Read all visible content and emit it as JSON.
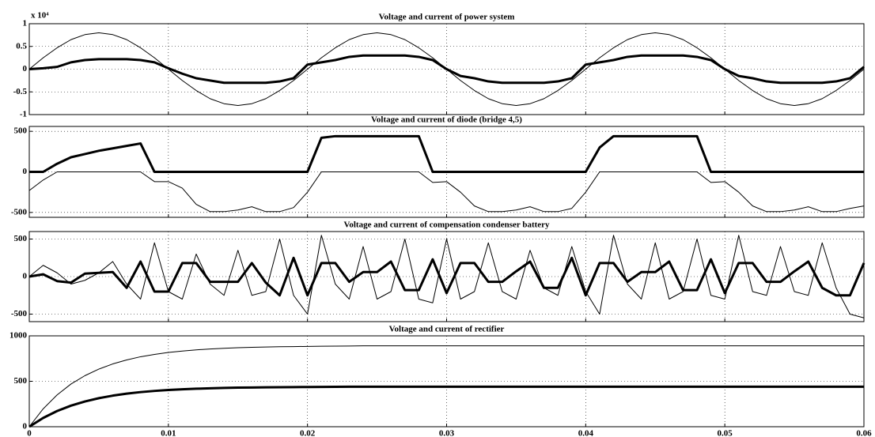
{
  "chart_data": [
    {
      "type": "line",
      "title": "Voltage and current of power system",
      "axis_scale_label": "x 10⁴",
      "x": [
        0,
        0.001,
        0.002,
        0.003,
        0.004,
        0.005,
        0.006,
        0.007,
        0.008,
        0.009,
        0.01,
        0.011,
        0.012,
        0.013,
        0.014,
        0.015,
        0.016,
        0.017,
        0.018,
        0.019,
        0.02,
        0.021,
        0.022,
        0.023,
        0.024,
        0.025,
        0.026,
        0.027,
        0.028,
        0.029,
        0.03,
        0.031,
        0.032,
        0.033,
        0.034,
        0.035,
        0.036,
        0.037,
        0.038,
        0.039,
        0.04,
        0.041,
        0.042,
        0.043,
        0.044,
        0.045,
        0.046,
        0.047,
        0.048,
        0.049,
        0.05,
        0.051,
        0.052,
        0.053,
        0.054,
        0.055,
        0.056,
        0.057,
        0.058,
        0.059,
        0.06
      ],
      "xlim": [
        0,
        0.06
      ],
      "xticks": [
        0,
        0.01,
        0.02,
        0.03,
        0.04,
        0.05,
        0.06
      ],
      "ylim": [
        -1,
        1
      ],
      "yticks": [
        -1,
        -0.5,
        0,
        0.5,
        1
      ],
      "grid": true,
      "series": [
        {
          "color": "#000000",
          "line_width": 1,
          "values": [
            0,
            0.25,
            0.47,
            0.65,
            0.76,
            0.8,
            0.76,
            0.65,
            0.47,
            0.25,
            0,
            -0.25,
            -0.47,
            -0.65,
            -0.76,
            -0.8,
            -0.76,
            -0.65,
            -0.47,
            -0.25,
            0,
            0.25,
            0.47,
            0.65,
            0.76,
            0.8,
            0.76,
            0.65,
            0.47,
            0.25,
            0,
            -0.25,
            -0.47,
            -0.65,
            -0.76,
            -0.8,
            -0.76,
            -0.65,
            -0.47,
            -0.25,
            0,
            0.25,
            0.47,
            0.65,
            0.76,
            0.8,
            0.76,
            0.65,
            0.47,
            0.25,
            0,
            -0.25,
            -0.47,
            -0.65,
            -0.76,
            -0.8,
            -0.76,
            -0.65,
            -0.47,
            -0.25,
            0
          ]
        },
        {
          "color": "#000000",
          "line_width": 3,
          "values": [
            0,
            0.02,
            0.05,
            0.15,
            0.2,
            0.22,
            0.22,
            0.22,
            0.2,
            0.15,
            0.02,
            -0.1,
            -0.2,
            -0.25,
            -0.3,
            -0.3,
            -0.3,
            -0.3,
            -0.27,
            -0.2,
            0.1,
            0.15,
            0.2,
            0.27,
            0.3,
            0.3,
            0.3,
            0.3,
            0.27,
            0.2,
            0,
            -0.15,
            -0.2,
            -0.27,
            -0.3,
            -0.3,
            -0.3,
            -0.3,
            -0.27,
            -0.2,
            0.1,
            0.15,
            0.2,
            0.27,
            0.3,
            0.3,
            0.3,
            0.3,
            0.27,
            0.2,
            0,
            -0.15,
            -0.2,
            -0.27,
            -0.3,
            -0.3,
            -0.3,
            -0.3,
            -0.27,
            -0.2,
            0.05
          ]
        }
      ]
    },
    {
      "type": "line",
      "title": "Voltage and current of diode (bridge 4,5)",
      "x": [
        0,
        0.001,
        0.002,
        0.003,
        0.004,
        0.005,
        0.006,
        0.007,
        0.008,
        0.009,
        0.01,
        0.011,
        0.012,
        0.013,
        0.014,
        0.015,
        0.016,
        0.017,
        0.018,
        0.019,
        0.02,
        0.021,
        0.022,
        0.023,
        0.024,
        0.025,
        0.026,
        0.027,
        0.028,
        0.029,
        0.03,
        0.031,
        0.032,
        0.033,
        0.034,
        0.035,
        0.036,
        0.037,
        0.038,
        0.039,
        0.04,
        0.041,
        0.042,
        0.043,
        0.044,
        0.045,
        0.046,
        0.047,
        0.048,
        0.049,
        0.05,
        0.051,
        0.052,
        0.053,
        0.054,
        0.055,
        0.056,
        0.057,
        0.058,
        0.059,
        0.06
      ],
      "xlim": [
        0,
        0.06
      ],
      "xticks": [
        0,
        0.01,
        0.02,
        0.03,
        0.04,
        0.05,
        0.06
      ],
      "ylim": [
        -560,
        560
      ],
      "yticks": [
        -500,
        0,
        500
      ],
      "grid": true,
      "series": [
        {
          "color": "#000000",
          "line_width": 1,
          "values": [
            -230,
            -100,
            0,
            0,
            0,
            0,
            0,
            0,
            0,
            -120,
            -120,
            -200,
            -400,
            -490,
            -490,
            -470,
            -430,
            -490,
            -490,
            -440,
            -250,
            0,
            0,
            0,
            0,
            0,
            0,
            0,
            0,
            -130,
            -120,
            -250,
            -420,
            -490,
            -490,
            -470,
            -430,
            -490,
            -490,
            -450,
            -250,
            0,
            0,
            0,
            0,
            0,
            0,
            0,
            0,
            -130,
            -120,
            -250,
            -420,
            -490,
            -490,
            -470,
            -430,
            -490,
            -490,
            -450,
            -420
          ]
        },
        {
          "color": "#000000",
          "line_width": 3,
          "values": [
            0,
            0,
            100,
            180,
            220,
            260,
            290,
            320,
            350,
            0,
            0,
            0,
            0,
            0,
            0,
            0,
            0,
            0,
            0,
            0,
            0,
            420,
            440,
            440,
            440,
            440,
            440,
            440,
            440,
            0,
            0,
            0,
            0,
            0,
            0,
            0,
            0,
            0,
            0,
            0,
            0,
            300,
            440,
            440,
            440,
            440,
            440,
            440,
            440,
            0,
            0,
            0,
            0,
            0,
            0,
            0,
            0,
            0,
            0,
            0,
            0
          ]
        }
      ]
    },
    {
      "type": "line",
      "title": "Voltage and current of compensation condenser battery",
      "x": [
        0,
        0.001,
        0.002,
        0.003,
        0.004,
        0.005,
        0.006,
        0.007,
        0.008,
        0.009,
        0.01,
        0.011,
        0.012,
        0.013,
        0.014,
        0.015,
        0.016,
        0.017,
        0.018,
        0.019,
        0.02,
        0.021,
        0.022,
        0.023,
        0.024,
        0.025,
        0.026,
        0.027,
        0.028,
        0.029,
        0.03,
        0.031,
        0.032,
        0.033,
        0.034,
        0.035,
        0.036,
        0.037,
        0.038,
        0.039,
        0.04,
        0.041,
        0.042,
        0.043,
        0.044,
        0.045,
        0.046,
        0.047,
        0.048,
        0.049,
        0.05,
        0.051,
        0.052,
        0.053,
        0.054,
        0.055,
        0.056,
        0.057,
        0.058,
        0.059,
        0.06
      ],
      "xlim": [
        0,
        0.06
      ],
      "xticks": [
        0,
        0.01,
        0.02,
        0.03,
        0.04,
        0.05,
        0.06
      ],
      "ylim": [
        -600,
        600
      ],
      "yticks": [
        -500,
        0,
        500
      ],
      "grid": true,
      "series": [
        {
          "color": "#000000",
          "line_width": 1,
          "values": [
            0,
            150,
            50,
            -100,
            -50,
            50,
            200,
            -100,
            -300,
            450,
            -200,
            -300,
            300,
            -100,
            -250,
            350,
            -250,
            -200,
            500,
            -250,
            -500,
            550,
            -100,
            -300,
            400,
            -300,
            -200,
            500,
            -300,
            -350,
            500,
            -300,
            -200,
            450,
            -200,
            -300,
            350,
            -150,
            -250,
            400,
            -200,
            -500,
            550,
            -100,
            -300,
            450,
            -300,
            -200,
            500,
            -250,
            -300,
            550,
            -200,
            -250,
            400,
            -200,
            -250,
            450,
            -150,
            -500,
            -550
          ]
        },
        {
          "color": "#000000",
          "line_width": 3,
          "values": [
            0,
            30,
            -60,
            -80,
            40,
            50,
            60,
            -150,
            200,
            -200,
            -200,
            180,
            180,
            -70,
            -70,
            -70,
            180,
            -80,
            -250,
            250,
            -250,
            180,
            180,
            -70,
            60,
            60,
            200,
            -180,
            -180,
            230,
            -220,
            180,
            180,
            -70,
            -70,
            70,
            200,
            -150,
            -150,
            250,
            -250,
            180,
            180,
            -70,
            60,
            60,
            200,
            -180,
            -180,
            230,
            -220,
            180,
            180,
            -70,
            -70,
            70,
            200,
            -150,
            -250,
            -250,
            180
          ]
        }
      ]
    },
    {
      "type": "line",
      "title": "Voltage and current of rectifier",
      "x": [
        0,
        0.001,
        0.002,
        0.003,
        0.004,
        0.005,
        0.006,
        0.007,
        0.008,
        0.009,
        0.01,
        0.011,
        0.012,
        0.013,
        0.014,
        0.015,
        0.016,
        0.017,
        0.018,
        0.019,
        0.02,
        0.021,
        0.022,
        0.023,
        0.024,
        0.025,
        0.026,
        0.027,
        0.028,
        0.029,
        0.03,
        0.031,
        0.032,
        0.033,
        0.034,
        0.035,
        0.036,
        0.037,
        0.038,
        0.039,
        0.04,
        0.041,
        0.042,
        0.043,
        0.044,
        0.045,
        0.046,
        0.047,
        0.048,
        0.049,
        0.05,
        0.051,
        0.052,
        0.053,
        0.054,
        0.055,
        0.056,
        0.057,
        0.058,
        0.059,
        0.06
      ],
      "xlim": [
        0,
        0.06
      ],
      "xticks": [
        0,
        0.01,
        0.02,
        0.03,
        0.04,
        0.05,
        0.06
      ],
      "ylim": [
        0,
        1000
      ],
      "yticks": [
        0,
        500,
        1000
      ],
      "grid": true,
      "series": [
        {
          "color": "#000000",
          "line_width": 1,
          "values": [
            0,
            197,
            350,
            470,
            562,
            634,
            691,
            735,
            770,
            796,
            817,
            833,
            846,
            855,
            863,
            869,
            874,
            877,
            880,
            882,
            884,
            886,
            887,
            888,
            890,
            890,
            890,
            890,
            890,
            890,
            890,
            890,
            890,
            890,
            890,
            890,
            890,
            890,
            890,
            890,
            890,
            890,
            890,
            890,
            890,
            890,
            890,
            890,
            890,
            890,
            890,
            890,
            890,
            890,
            890,
            890,
            890,
            890,
            890,
            890,
            890
          ]
        },
        {
          "color": "#000000",
          "line_width": 3,
          "values": [
            0,
            97,
            173,
            232,
            278,
            314,
            342,
            364,
            381,
            394,
            404,
            412,
            418,
            423,
            427,
            430,
            432,
            434,
            435,
            436,
            437,
            438,
            439,
            440,
            440,
            440,
            440,
            440,
            440,
            440,
            440,
            440,
            440,
            440,
            440,
            440,
            440,
            440,
            440,
            440,
            440,
            440,
            440,
            440,
            440,
            440,
            440,
            440,
            440,
            440,
            440,
            440,
            440,
            440,
            440,
            440,
            440,
            440,
            440,
            440,
            440
          ]
        }
      ]
    }
  ]
}
